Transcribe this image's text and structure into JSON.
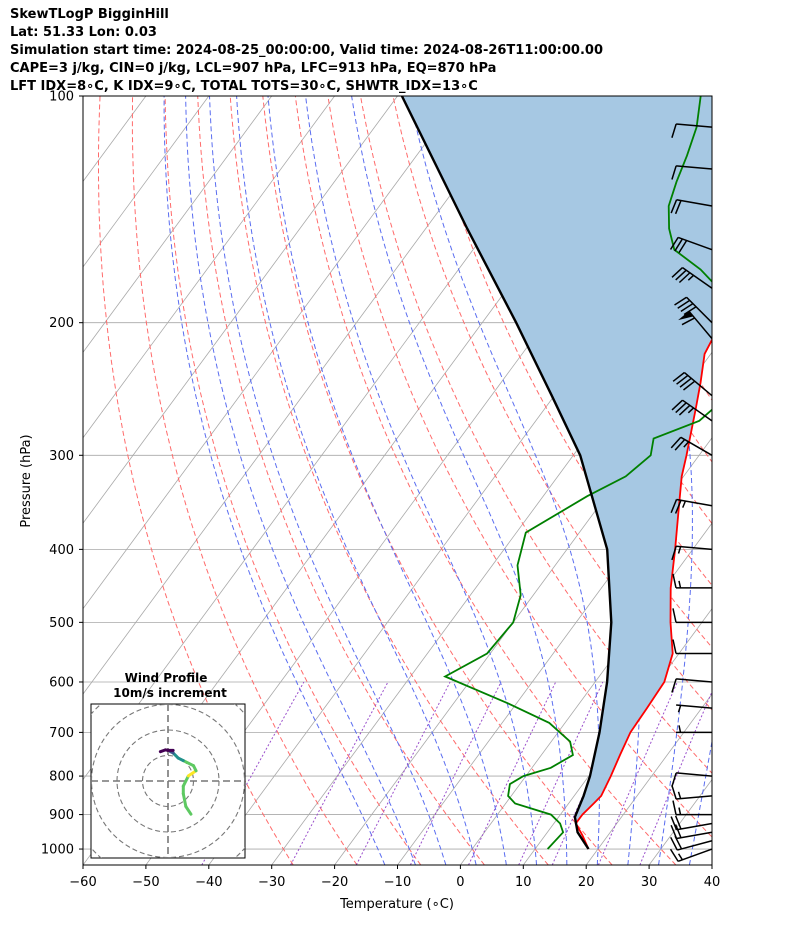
{
  "header": {
    "line1": "SkewTLogP BigginHill",
    "line2": "Lat: 51.33   Lon: 0.03",
    "line3": "Simulation start time: 2024-08-25_00:00:00, Valid time: 2024-08-26T11:00:00.00",
    "line4": "CAPE=3 j/kg, CIN=0 j/kg, LCL=907 hPa, LFC=913 hPa, EQ=870 hPa",
    "line5": "LFT IDX=8∘C, K IDX=9∘C, TOTAL TOTS=30∘C, SHWTR_IDX=13∘C"
  },
  "chart_data": {
    "type": "line",
    "chart_kind": "skew-T log-P diagram",
    "xlabel": "Temperature (∘C)",
    "ylabel": "Pressure (hPa)",
    "xlim": [
      -60,
      40
    ],
    "ylim": [
      1050,
      100
    ],
    "y_scale": "log",
    "x_ticks": [
      "−60",
      "−50",
      "−40",
      "−30",
      "−20",
      "−10",
      "0",
      "10",
      "20",
      "30",
      "40"
    ],
    "y_ticks": [
      "100",
      "200",
      "300",
      "400",
      "500",
      "600",
      "700",
      "800",
      "900",
      "1000"
    ],
    "grid": true,
    "series": [
      {
        "role": "temperature",
        "color": "#ff0000",
        "points": [
          [
            1000,
            18.5
          ],
          [
            960,
            16
          ],
          [
            925,
            13.5
          ],
          [
            900,
            13.5
          ],
          [
            870,
            14
          ],
          [
            850,
            14.3
          ],
          [
            800,
            13.5
          ],
          [
            750,
            12.5
          ],
          [
            700,
            11.5
          ],
          [
            650,
            11.3
          ],
          [
            600,
            11
          ],
          [
            550,
            9
          ],
          [
            500,
            5
          ],
          [
            450,
            1
          ],
          [
            400,
            -2.8
          ],
          [
            350,
            -7.3
          ],
          [
            320,
            -10.3
          ],
          [
            300,
            -12
          ],
          [
            260,
            -16
          ],
          [
            240,
            -18.3
          ],
          [
            220,
            -21
          ],
          [
            210,
            -21.5
          ],
          [
            200,
            -21.6
          ],
          [
            188,
            -22.1
          ],
          [
            175,
            -22.4
          ],
          [
            160,
            -21.7
          ],
          [
            150,
            -19.5
          ],
          [
            140,
            -16.5
          ],
          [
            130,
            -13.5
          ],
          [
            120,
            -12.5
          ],
          [
            110,
            -14
          ],
          [
            100,
            -17
          ]
        ]
      },
      {
        "role": "dewpoint",
        "color": "#008000",
        "points": [
          [
            1000,
            12
          ],
          [
            950,
            12.5
          ],
          [
            925,
            11
          ],
          [
            900,
            8.5
          ],
          [
            870,
            1.5
          ],
          [
            850,
            -0.5
          ],
          [
            820,
            -1.6
          ],
          [
            800,
            -0.4
          ],
          [
            780,
            3
          ],
          [
            750,
            5
          ],
          [
            720,
            3
          ],
          [
            680,
            -2.5
          ],
          [
            640,
            -11.5
          ],
          [
            590,
            -24.5
          ],
          [
            550,
            -20.5
          ],
          [
            500,
            -20
          ],
          [
            460,
            -22
          ],
          [
            420,
            -26
          ],
          [
            380,
            -28.5
          ],
          [
            340,
            -23
          ],
          [
            320,
            -19.2
          ],
          [
            300,
            -17.7
          ],
          [
            285,
            -19.2
          ],
          [
            270,
            -14
          ],
          [
            255,
            -12.8
          ],
          [
            240,
            -14.5
          ],
          [
            220,
            -18.7
          ],
          [
            200,
            -22.3
          ],
          [
            190,
            -24.5
          ],
          [
            180,
            -26.5
          ],
          [
            170,
            -31.5
          ],
          [
            160,
            -38
          ],
          [
            150,
            -41.3
          ],
          [
            140,
            -44
          ],
          [
            130,
            -45.6
          ],
          [
            120,
            -47
          ],
          [
            110,
            -48.8
          ],
          [
            100,
            -51.8
          ]
        ]
      },
      {
        "role": "parcel",
        "color": "#000000",
        "points": [
          [
            1000,
            18.5
          ],
          [
            950,
            14.8
          ],
          [
            907,
            12.6
          ],
          [
            850,
            11.5
          ],
          [
            800,
            10.2
          ],
          [
            700,
            6.6
          ],
          [
            600,
            1.9
          ],
          [
            500,
            -4.4
          ],
          [
            400,
            -13.6
          ],
          [
            300,
            -28.9
          ],
          [
            250,
            -40.4
          ],
          [
            200,
            -54.6
          ],
          [
            150,
            -73.4
          ],
          [
            100,
            -99.3
          ]
        ]
      }
    ],
    "cape_shading_color": "#a6c8e3",
    "isotherms_color": "#a9a9a9",
    "dry_adiabats_color": "#ff6b6b",
    "moist_adiabats_color": "#5a6df0",
    "mixing_ratio_color": "#9a4fcc",
    "wind_barbs": [
      {
        "p": 1000,
        "speed": 15,
        "dir": 250
      },
      {
        "p": 975,
        "speed": 20,
        "dir": 255
      },
      {
        "p": 950,
        "speed": 20,
        "dir": 260
      },
      {
        "p": 925,
        "speed": 20,
        "dir": 260
      },
      {
        "p": 900,
        "speed": 15,
        "dir": 270
      },
      {
        "p": 850,
        "speed": 15,
        "dir": 265
      },
      {
        "p": 800,
        "speed": 10,
        "dir": 275
      },
      {
        "p": 700,
        "speed": 5,
        "dir": 270
      },
      {
        "p": 650,
        "speed": 5,
        "dir": 275
      },
      {
        "p": 600,
        "speed": 10,
        "dir": 275
      },
      {
        "p": 550,
        "speed": 10,
        "dir": 270
      },
      {
        "p": 500,
        "speed": 10,
        "dir": 270
      },
      {
        "p": 450,
        "speed": 15,
        "dir": 270
      },
      {
        "p": 400,
        "speed": 15,
        "dir": 275
      },
      {
        "p": 350,
        "speed": 25,
        "dir": 280
      },
      {
        "p": 300,
        "speed": 25,
        "dir": 300
      },
      {
        "p": 270,
        "speed": 35,
        "dir": 305
      },
      {
        "p": 250,
        "speed": 40,
        "dir": 310
      },
      {
        "p": 210,
        "speed": 60,
        "dir": 320
      },
      {
        "p": 200,
        "speed": 40,
        "dir": 315
      },
      {
        "p": 180,
        "speed": 35,
        "dir": 305
      },
      {
        "p": 160,
        "speed": 30,
        "dir": 290
      },
      {
        "p": 140,
        "speed": 20,
        "dir": 280
      },
      {
        "p": 125,
        "speed": 10,
        "dir": 275
      },
      {
        "p": 110,
        "speed": 10,
        "dir": 275
      }
    ],
    "hodograph": {
      "title_line1": "Wind Profile",
      "title_line2": "10m/s increment",
      "ring_interval": 10,
      "points": [
        [
          9,
          -13
        ],
        [
          7,
          -10
        ],
        [
          6,
          -5
        ],
        [
          6,
          -2
        ],
        [
          8,
          2
        ],
        [
          11,
          4
        ],
        [
          10,
          6
        ],
        [
          6,
          8
        ],
        [
          4,
          9
        ],
        [
          2,
          11
        ],
        [
          1,
          11.5
        ],
        [
          2,
          12
        ],
        [
          0,
          12
        ],
        [
          -1,
          12.2
        ],
        [
          -3,
          11.5
        ]
      ],
      "colormap": [
        "#440154",
        "#3b528b",
        "#21918c",
        "#5ec962",
        "#fde725"
      ]
    }
  }
}
